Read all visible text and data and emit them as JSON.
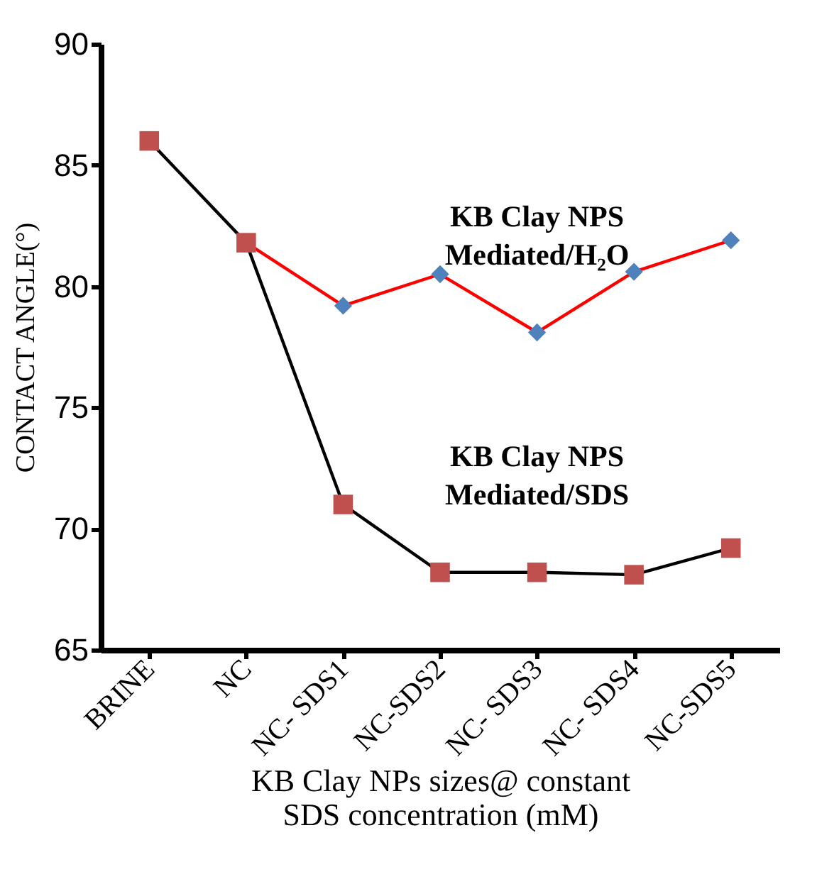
{
  "chart_data": {
    "type": "line",
    "xlabel": "KB Clay NPs sizes@ constant SDS concentration (mM)",
    "ylabel": "CONTACT ANGLE(°)",
    "categories": [
      "BRINE",
      "NC",
      "NC- SDS1",
      "NC-SDS2",
      "NC- SDS3",
      "NC- SDS4",
      "NC-SDS5"
    ],
    "series": [
      {
        "name": "KB Clay NPS Mediated/H₂O",
        "color": "#ff0000",
        "colors": [
          null,
          "#4f81bd",
          "#4f81bd",
          "#4f81bd",
          "#4f81bd",
          "#4f81bd",
          "#4f81bd"
        ],
        "marker": "diamond",
        "values": [
          null,
          81.8,
          79.2,
          80.5,
          78.1,
          80.6,
          81.9
        ]
      },
      {
        "name": "KB Clay NPS Mediated/SDS",
        "color": "#000000",
        "colors": [
          "#c0504d",
          "#c0504d",
          "#c0504d",
          "#c0504d",
          "#c0504d",
          "#c0504d",
          "#c0504d"
        ],
        "marker": "square",
        "values": [
          86.0,
          81.8,
          71.0,
          68.2,
          68.2,
          68.1,
          69.2
        ]
      }
    ],
    "ylim": [
      65,
      90
    ],
    "yticks": [
      65,
      70,
      75,
      80,
      85,
      90
    ],
    "grid": false
  }
}
